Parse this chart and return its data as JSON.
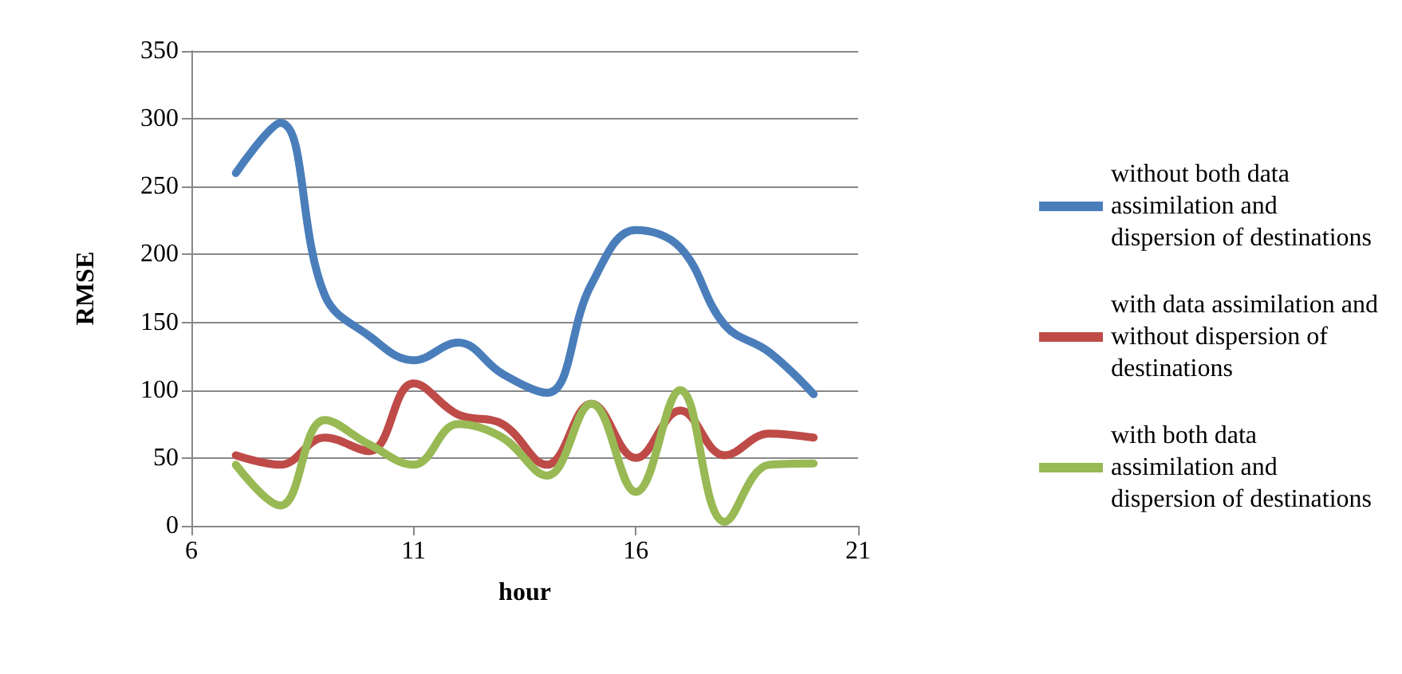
{
  "chart_data": {
    "type": "line",
    "xlabel": "hour",
    "ylabel": "RMSE",
    "x": [
      7,
      8,
      9,
      10,
      11,
      12,
      13,
      14,
      15,
      16,
      17,
      18,
      19,
      20
    ],
    "xlim": [
      6,
      21
    ],
    "xticks": [
      6,
      11,
      16,
      21
    ],
    "ylim": [
      0,
      350
    ],
    "yticks": [
      0,
      50,
      100,
      150,
      200,
      250,
      300,
      350
    ],
    "grid": "y",
    "legend": "right",
    "marker": "none",
    "line_style": "solid",
    "series": [
      {
        "name": "without both data assimilation and dispersion of destinations",
        "color": "#4a7ebb",
        "values": [
          260,
          297,
          170,
          140,
          122,
          135,
          112,
          98,
          178,
          218,
          205,
          148,
          128,
          97
        ]
      },
      {
        "name": "with data assimilation and without dispersion of destinations",
        "color": "#be4b48",
        "values": [
          52,
          45,
          65,
          55,
          105,
          82,
          75,
          45,
          90,
          50,
          85,
          52,
          68,
          65
        ]
      },
      {
        "name": "with both data assimilation and dispersion of destinations",
        "color": "#98b954",
        "values": [
          45,
          15,
          78,
          60,
          45,
          75,
          65,
          37,
          90,
          25,
          100,
          3,
          45,
          46
        ]
      }
    ]
  }
}
